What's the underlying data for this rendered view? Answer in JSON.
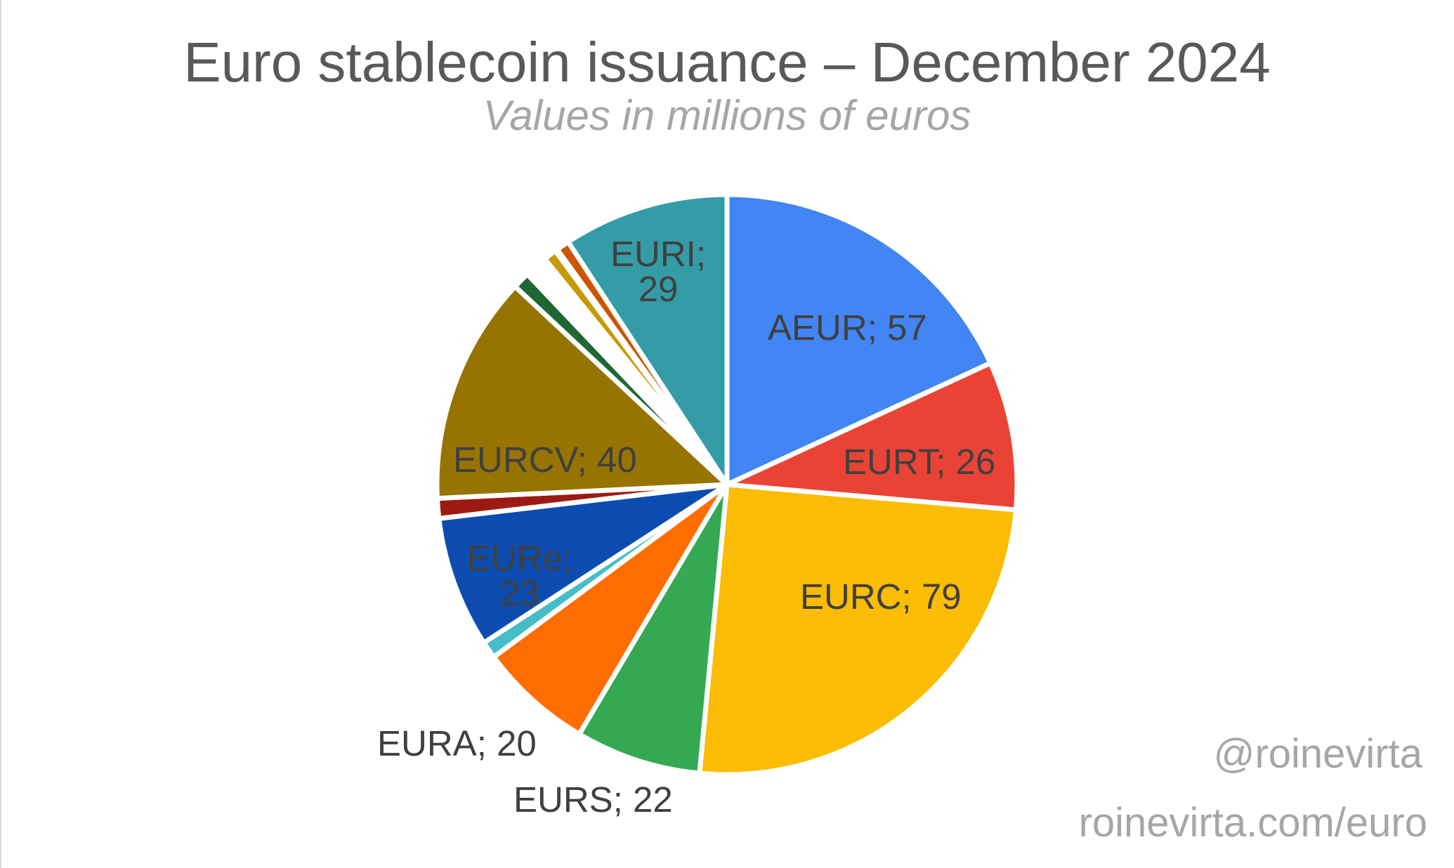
{
  "chart_data": {
    "type": "pie",
    "title": "Euro stablecoin issuance – December 2024",
    "subtitle": "Values in millions of euros",
    "xlabel": "",
    "ylabel": "",
    "start_angle_deg": 0,
    "direction": "clockwise",
    "label_format": "{name}; {value}",
    "slices": [
      {
        "name": "AEUR",
        "value": 57,
        "color": "#4285f4",
        "labeled": true
      },
      {
        "name": "EURT",
        "value": 26,
        "color": "#ea4335",
        "labeled": true
      },
      {
        "name": "EURC",
        "value": 79,
        "color": "#fbbc04",
        "labeled": true
      },
      {
        "name": "EURS",
        "value": 22,
        "color": "#34a853",
        "labeled": true
      },
      {
        "name": "EURA",
        "value": 20,
        "color": "#ff6d01",
        "labeled": true
      },
      {
        "name": "",
        "value": 3,
        "color": "#46bdc6",
        "labeled": false
      },
      {
        "name": "EURe",
        "value": 23,
        "color": "#0c4cb0",
        "labeled": true
      },
      {
        "name": "",
        "value": 3.5,
        "color": "#9c1a14",
        "labeled": false
      },
      {
        "name": "EURCV",
        "value": 40,
        "color": "#977300",
        "labeled": true
      },
      {
        "name": "",
        "value": 3,
        "color": "#1f6734",
        "labeled": false
      },
      {
        "name": "",
        "value": 2,
        "color": "#ffffff",
        "labeled": false
      },
      {
        "name": "",
        "value": 0.4,
        "color": "#6d9eeb",
        "labeled": false
      },
      {
        "name": "",
        "value": 1.6,
        "color": "#ffffff",
        "labeled": false
      },
      {
        "name": "",
        "value": 2.3,
        "color": "#c69a05",
        "labeled": false
      },
      {
        "name": "",
        "value": 0.4,
        "color": "#2e8540",
        "labeled": false
      },
      {
        "name": "",
        "value": 2.3,
        "color": "#cc5500",
        "labeled": false
      },
      {
        "name": "EURI",
        "value": 29,
        "color": "#349ca6",
        "labeled": true
      }
    ],
    "legend": "none",
    "total_approx": 314.5
  },
  "header": {
    "title": "Euro stablecoin issuance – December 2024",
    "subtitle": "Values in millions of euros"
  },
  "labels": {
    "aeur": "AEUR; 57",
    "eurt": "EURT; 26",
    "eurc": "EURC; 79",
    "eurs": "EURS; 22",
    "eura": "EURA; 20",
    "eure_line1": "EURe;",
    "eure_line2": "23",
    "eurcv": "EURCV; 40",
    "euri_line1": "EURI;",
    "euri_line2": "29"
  },
  "watermark": {
    "handle": "@roinevirta",
    "url": "roinevirta.com/euro"
  }
}
